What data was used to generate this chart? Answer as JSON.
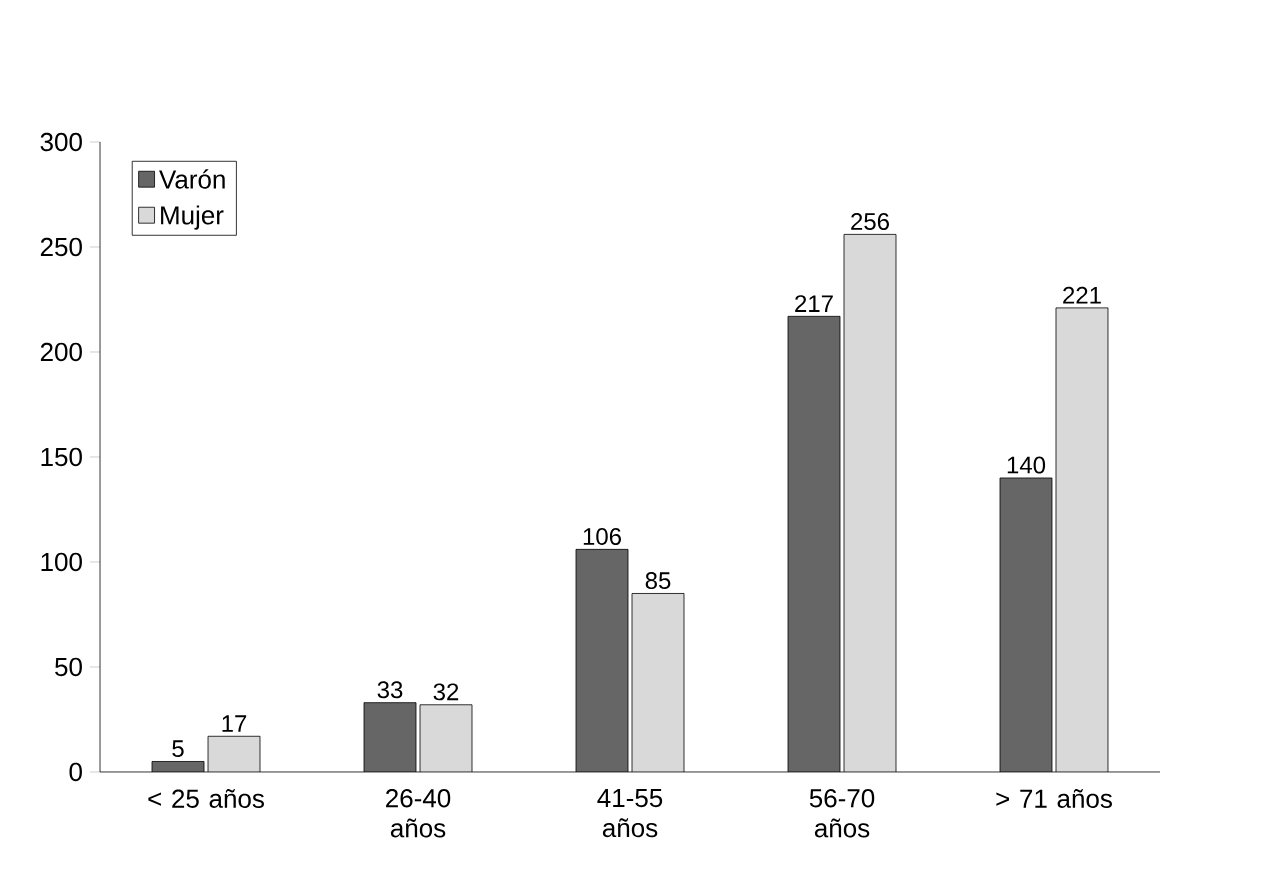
{
  "chart_data": {
    "type": "bar",
    "categories": [
      "< 25 años",
      "26-40 años",
      "41-55 años",
      "56-70 años",
      "> 71 años"
    ],
    "series": [
      {
        "name": "Varón",
        "color": "#666666",
        "values": [
          5,
          33,
          106,
          217,
          140
        ]
      },
      {
        "name": "Mujer",
        "color": "#d9d9d9",
        "values": [
          17,
          32,
          85,
          256,
          221
        ]
      }
    ],
    "ylim": [
      0,
      300
    ],
    "yticks": [
      0,
      50,
      100,
      150,
      200,
      250,
      300
    ],
    "data_labels": true,
    "legend": "top left",
    "grid": false
  }
}
